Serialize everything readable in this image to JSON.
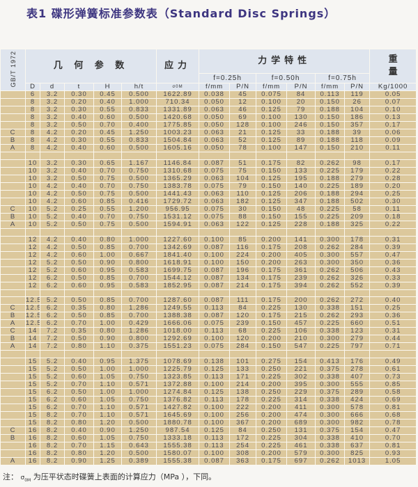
{
  "title": "表1  碟形弹簧标准参数表（Standard Disc Springs）",
  "header": {
    "standard": "GB/T 1972",
    "geometry": "几 何 参 数",
    "stress": "应力",
    "mechanics": "力学特性",
    "weight_line1": "重",
    "weight_line2": "量",
    "f1": "f=0.25h",
    "f2": "f=0.50h",
    "f3": "f=0.75h",
    "units": [
      "D",
      "d",
      "t",
      "H",
      "h/t",
      "σ0M",
      "f/mm",
      "P/N",
      "f/mm",
      "P/N",
      "f/mm",
      "P/N",
      "Kg/1000"
    ]
  },
  "groups": [
    [
      [
        "",
        "6",
        "3.2",
        "0.30",
        "0.45",
        "0.500",
        "1622.89",
        "0.038",
        "45",
        "0.075",
        "84",
        "0.113",
        "119",
        "0.05"
      ],
      [
        "",
        "8",
        "3.2",
        "0.20",
        "0.40",
        "1.000",
        "710.34",
        "0.050",
        "12",
        "0.100",
        "20",
        "0.150",
        "26",
        "0.07"
      ],
      [
        "",
        "8",
        "3.2",
        "0.30",
        "0.55",
        "0.833",
        "1331.89",
        "0.063",
        "46",
        "0.125",
        "79",
        "0.188",
        "104",
        "0.10"
      ],
      [
        "",
        "8",
        "3.2",
        "0.40",
        "0.60",
        "0.500",
        "1420.68",
        "0.050",
        "69",
        "0.100",
        "130",
        "0.150",
        "186",
        "0.13"
      ],
      [
        "",
        "8",
        "3.2",
        "0.50",
        "0.70",
        "0.400",
        "1775.85",
        "0.050",
        "128",
        "0.100",
        "246",
        "0.150",
        "357",
        "0.17"
      ],
      [
        "C",
        "8",
        "4.2",
        "0.20",
        "0.45",
        "1.250",
        "1003.23",
        "0.063",
        "21",
        "0.125",
        "33",
        "0.188",
        "39",
        "0.06"
      ],
      [
        "B",
        "8",
        "4.2",
        "0.30",
        "0.55",
        "0.833",
        "1504.84",
        "0.063",
        "52",
        "0.125",
        "89",
        "0.188",
        "118",
        "0.09"
      ],
      [
        "A",
        "8",
        "4.2",
        "0.40",
        "0.60",
        "0.500",
        "1605.16",
        "0.050",
        "78",
        "0.100",
        "147",
        "0.150",
        "210",
        "0.11"
      ]
    ],
    [
      [
        "",
        "10",
        "3.2",
        "0.30",
        "0.65",
        "1.167",
        "1146.84",
        "0.087",
        "51",
        "0.175",
        "82",
        "0.262",
        "98",
        "0.17"
      ],
      [
        "",
        "10",
        "3.2",
        "0.40",
        "0.70",
        "0.750",
        "1310.68",
        "0.075",
        "75",
        "0.150",
        "133",
        "0.225",
        "179",
        "0.22"
      ],
      [
        "",
        "10",
        "3.2",
        "0.50",
        "0.75",
        "0.500",
        "1365.29",
        "0.063",
        "104",
        "0.125",
        "195",
        "0.188",
        "279",
        "0.28"
      ],
      [
        "",
        "10",
        "4.2",
        "0.40",
        "0.70",
        "0.750",
        "1383.78",
        "0.075",
        "79",
        "0.150",
        "140",
        "0.225",
        "189",
        "0.20"
      ],
      [
        "",
        "10",
        "4.2",
        "0.50",
        "0.75",
        "0.500",
        "1441.43",
        "0.063",
        "110",
        "0.125",
        "206",
        "0.188",
        "294",
        "0.25"
      ],
      [
        "",
        "10",
        "4.2",
        "0.60",
        "0.85",
        "0.416",
        "1729.72",
        "0.063",
        "182",
        "0.125",
        "347",
        "0.188",
        "502",
        "0.30"
      ],
      [
        "C",
        "10",
        "5.2",
        "0.25",
        "0.55",
        "1.200",
        "956.95",
        "0.075",
        "30",
        "0.150",
        "48",
        "0.225",
        "58",
        "0.11"
      ],
      [
        "B",
        "10",
        "5.2",
        "0.40",
        "0.70",
        "0.750",
        "1531.12",
        "0.075",
        "88",
        "0.150",
        "155",
        "0.225",
        "209",
        "0.18"
      ],
      [
        "A",
        "10",
        "5.2",
        "0.50",
        "0.75",
        "0.500",
        "1594.91",
        "0.063",
        "122",
        "0.125",
        "228",
        "0.188",
        "325",
        "0.22"
      ]
    ],
    [
      [
        "",
        "12",
        "4.2",
        "0.40",
        "0.80",
        "1.000",
        "1227.60",
        "0.100",
        "85",
        "0.200",
        "141",
        "0.300",
        "178",
        "0.31"
      ],
      [
        "",
        "12",
        "4.2",
        "0.50",
        "0.85",
        "0.700",
        "1342.69",
        "0.087",
        "116",
        "0.175",
        "208",
        "0.262",
        "284",
        "0.39"
      ],
      [
        "",
        "12",
        "4.2",
        "0.60",
        "1.00",
        "0.667",
        "1841.40",
        "0.100",
        "224",
        "0.200",
        "405",
        "0.300",
        "557",
        "0.47"
      ],
      [
        "",
        "12",
        "5.2",
        "0.50",
        "0.90",
        "0.800",
        "1618.91",
        "0.100",
        "150",
        "0.200",
        "263",
        "0.300",
        "350",
        "0.36"
      ],
      [
        "",
        "12",
        "5.2",
        "0.60",
        "0.95",
        "0.583",
        "1699.75",
        "0.087",
        "196",
        "0.175",
        "361",
        "0.262",
        "506",
        "0.43"
      ],
      [
        "",
        "12",
        "6.2",
        "0.50",
        "0.85",
        "0.700",
        "1544.12",
        "0.087",
        "134",
        "0.175",
        "239",
        "0.262",
        "326",
        "0.33"
      ],
      [
        "",
        "12",
        "6.2",
        "0.60",
        "0.95",
        "0.583",
        "1852.95",
        "0.087",
        "214",
        "0.175",
        "394",
        "0.262",
        "552",
        "0.39"
      ]
    ],
    [
      [
        "",
        "12.5",
        "5.2",
        "0.50",
        "0.85",
        "0.700",
        "1287.60",
        "0.087",
        "111",
        "0.175",
        "200",
        "0.262",
        "272",
        "0.40"
      ],
      [
        "C",
        "12.5",
        "6.2",
        "0.35",
        "0.80",
        "1.286",
        "1249.55",
        "0.113",
        "84",
        "0.225",
        "130",
        "0.338",
        "151",
        "0.25"
      ],
      [
        "B",
        "12.5",
        "6.2",
        "0.50",
        "0.85",
        "0.700",
        "1388.38",
        "0.087",
        "120",
        "0.175",
        "215",
        "0.262",
        "293",
        "0.36"
      ],
      [
        "A",
        "12.5",
        "6.2",
        "0.70",
        "1.00",
        "0.429",
        "1666.06",
        "0.075",
        "239",
        "0.150",
        "457",
        "0.225",
        "660",
        "0.51"
      ],
      [
        "C",
        "14",
        "7.2",
        "0.35",
        "0.80",
        "1.286",
        "1018.00",
        "0.113",
        "68",
        "0.225",
        "106",
        "0.338",
        "123",
        "0.31"
      ],
      [
        "B",
        "14",
        "7.2",
        "0.50",
        "0.90",
        "0.800",
        "1292.69",
        "0.100",
        "120",
        "0.200",
        "210",
        "0.300",
        "279",
        "0.44"
      ],
      [
        "A",
        "14",
        "7.2",
        "0.80",
        "1.10",
        "0.375",
        "1551.23",
        "0.075",
        "284",
        "0.150",
        "547",
        "0.225",
        "797",
        "0.71"
      ]
    ],
    [
      [
        "",
        "15",
        "5.2",
        "0.40",
        "0.95",
        "1.375",
        "1078.69",
        "0.138",
        "101",
        "0.275",
        "154",
        "0.413",
        "176",
        "0.49"
      ],
      [
        "",
        "15",
        "5.2",
        "0.50",
        "1.00",
        "1.000",
        "1225.79",
        "0.125",
        "133",
        "0.250",
        "221",
        "0.375",
        "278",
        "0.61"
      ],
      [
        "",
        "15",
        "5.2",
        "0.60",
        "1.05",
        "0.750",
        "1323.85",
        "0.113",
        "171",
        "0.225",
        "302",
        "0.338",
        "407",
        "0.73"
      ],
      [
        "",
        "15",
        "5.2",
        "0.70",
        "1.10",
        "0.571",
        "1372.88",
        "0.100",
        "214",
        "0.200",
        "395",
        "0.300",
        "555",
        "0.85"
      ],
      [
        "",
        "15",
        "6.2",
        "0.50",
        "1.00",
        "1.000",
        "1274.84",
        "0.125",
        "138",
        "0.250",
        "229",
        "0.375",
        "289",
        "0.58"
      ],
      [
        "",
        "15",
        "6.2",
        "0.60",
        "1.05",
        "0.750",
        "1376.82",
        "0.113",
        "178",
        "0.225",
        "314",
        "0.338",
        "424",
        "0.69"
      ],
      [
        "",
        "15",
        "6.2",
        "0.70",
        "1.10",
        "0.571",
        "1427.82",
        "0.100",
        "222",
        "0.200",
        "411",
        "0.300",
        "578",
        "0.81"
      ],
      [
        "",
        "15",
        "8.2",
        "0.70",
        "1.10",
        "0.571",
        "1645.69",
        "0.100",
        "256",
        "0.200",
        "474",
        "0.300",
        "666",
        "0.68"
      ],
      [
        "",
        "15",
        "8.2",
        "0.80",
        "1.20",
        "0.500",
        "1880.78",
        "0.100",
        "367",
        "0.200",
        "689",
        "0.300",
        "982",
        "0.78"
      ],
      [
        "C",
        "16",
        "8.2",
        "0.40",
        "0.90",
        "1.250",
        "987.54",
        "0.125",
        "84",
        "0.250",
        "131",
        "0.375",
        "154",
        "0.47"
      ],
      [
        "B",
        "16",
        "8.2",
        "0.60",
        "1.05",
        "0.750",
        "1333.18",
        "0.113",
        "172",
        "0.225",
        "304",
        "0.338",
        "410",
        "0.70"
      ],
      [
        "",
        "16",
        "8.2",
        "0.70",
        "1.15",
        "0.643",
        "1555.38",
        "0.113",
        "254",
        "0.225",
        "461",
        "0.338",
        "637",
        "0.81"
      ],
      [
        "",
        "16",
        "8.2",
        "0.80",
        "1.20",
        "0.500",
        "1580.07",
        "0.100",
        "308",
        "0.200",
        "579",
        "0.300",
        "825",
        "0.93"
      ],
      [
        "A",
        "16",
        "8.2",
        "0.90",
        "1.25",
        "0.389",
        "1555.38",
        "0.087",
        "363",
        "0.175",
        "697",
        "0.262",
        "1013",
        "1.05"
      ]
    ]
  ],
  "note": {
    "prefix": "注：",
    "symbol": "σ",
    "symbol_sub": "0M",
    "text": "为压平状态时碟簧上表面的计算应力（MPa ），下同。"
  },
  "colors": {
    "title": "#3d3580",
    "header_bg": "#dfe5ee",
    "row_bg": "#dcc89c",
    "grid": "#fbf8f0"
  }
}
